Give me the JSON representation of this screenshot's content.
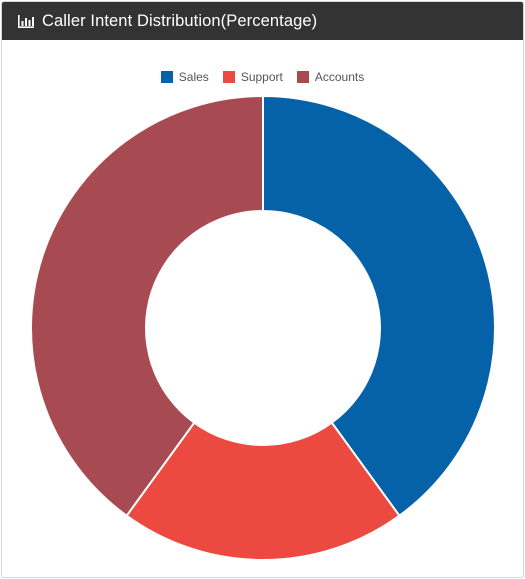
{
  "panel": {
    "title": "Caller Intent Distribution(Percentage)",
    "icon": "bar-chart-icon"
  },
  "chart_data": {
    "type": "pie",
    "variant": "doughnut",
    "title": "Caller Intent Distribution(Percentage)",
    "legend_position": "top",
    "categories": [
      "Sales",
      "Support",
      "Accounts"
    ],
    "values": [
      40,
      20,
      40
    ],
    "colors": [
      "#0561a8",
      "#ec4a41",
      "#a84a52"
    ]
  }
}
